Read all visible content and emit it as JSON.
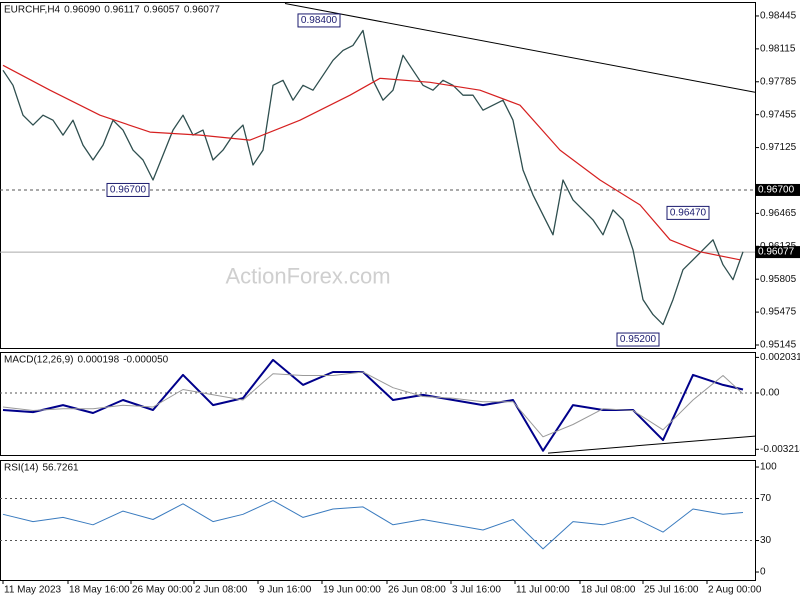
{
  "chart_data": [
    {
      "type": "line",
      "title": "EURCHF,H4",
      "header_values": [
        {
          "value": 0.9609,
          "label": "0.96090"
        },
        {
          "value": 0.96117,
          "label": "0.96117"
        },
        {
          "value": 0.96057,
          "label": "0.96057"
        },
        {
          "value": 0.96077,
          "label": "0.96077"
        }
      ],
      "watermark": "ActionForex.com",
      "xlim": [
        -0.3,
        75.2
      ],
      "ylim": [
        0.95115,
        0.98585
      ],
      "yticks": [
        0.98445,
        0.98115,
        0.97785,
        0.97455,
        0.97125,
        0.96465,
        0.96135,
        0.95805,
        0.95475,
        0.95145
      ],
      "series": [
        {
          "color": "#2f4f4f",
          "width": 1.3,
          "values": [
            0.979,
            0.9775,
            0.9745,
            0.9735,
            0.9745,
            0.974,
            0.9725,
            0.974,
            0.9715,
            0.97,
            0.9715,
            0.974,
            0.973,
            0.971,
            0.97,
            0.968,
            0.9705,
            0.973,
            0.9745,
            0.9725,
            0.973,
            0.97,
            0.971,
            0.9725,
            0.9735,
            0.9695,
            0.971,
            0.9775,
            0.978,
            0.976,
            0.9775,
            0.977,
            0.9785,
            0.98,
            0.981,
            0.9815,
            0.983,
            0.978,
            0.976,
            0.977,
            0.9805,
            0.979,
            0.9775,
            0.977,
            0.978,
            0.9775,
            0.9765,
            0.9765,
            0.975,
            0.9755,
            0.976,
            0.974,
            0.969,
            0.9665,
            0.9645,
            0.9625,
            0.968,
            0.966,
            0.965,
            0.964,
            0.9625,
            0.965,
            0.964,
            0.961,
            0.956,
            0.9545,
            0.9535,
            0.956,
            0.959,
            0.96,
            0.961,
            0.962,
            0.9595,
            0.958,
            0.9608
          ]
        },
        {
          "color": "#d62020",
          "width": 1.2,
          "x": [
            0,
            4.7,
            9.7,
            14.7,
            19.7,
            24.7,
            29.7,
            34.7,
            37.7,
            42.7,
            47.7,
            51.7,
            55.7,
            59.7,
            63.7,
            66.7,
            69.7,
            73.7
          ],
          "values": [
            0.9795,
            0.977,
            0.9745,
            0.9728,
            0.9725,
            0.972,
            0.974,
            0.9765,
            0.9782,
            0.9778,
            0.977,
            0.9755,
            0.971,
            0.968,
            0.9655,
            0.962,
            0.9608,
            0.96
          ]
        }
      ],
      "levels": [
        {
          "value": 0.967,
          "label": "0.96700"
        }
      ],
      "last": {
        "value": 0.96077,
        "label": "0.96077"
      },
      "annotations": [
        {
          "x": 31.6,
          "value": 0.984,
          "label": "0.98400"
        },
        {
          "x": 12.5,
          "value": 0.967,
          "label": "0.96700"
        },
        {
          "x": 68.5,
          "value": 0.9647,
          "label": "0.96470"
        },
        {
          "x": 63.5,
          "value": 0.952,
          "label": "0.95200"
        }
      ],
      "trendlines": [
        {
          "x": [
            28.2,
            75.2
          ],
          "values": [
            0.9857,
            0.9768
          ]
        }
      ]
    },
    {
      "type": "line",
      "title": "MACD(12,26,9)",
      "header_values": [
        {
          "value": 0.000198,
          "label": "0.000198"
        },
        {
          "value": -5e-05,
          "label": "-0.000050"
        }
      ],
      "xlim": [
        -0.3,
        75.2
      ],
      "ylim": [
        -0.00354,
        0.00234
      ],
      "yticks": [
        0.002031,
        {
          "value": 0,
          "label": "0.00"
        },
        -0.003214
      ],
      "levels": [
        0
      ],
      "series": [
        {
          "color": "#00008b",
          "width": 2,
          "x": [
            0,
            3,
            6,
            9,
            12,
            15,
            18,
            21,
            24,
            27,
            30,
            33,
            36,
            39,
            42,
            45,
            48,
            51,
            54,
            57,
            60,
            63,
            66,
            69,
            72,
            74
          ],
          "values": [
            -0.00097,
            -0.00109,
            -0.00069,
            -0.00114,
            -0.0004,
            -0.00097,
            0.00103,
            -0.00069,
            -0.00029,
            0.00189,
            0.00046,
            0.0012,
            0.0012,
            -0.0004,
            -0.00011,
            -0.0004,
            -0.00069,
            -0.0004,
            -0.0033,
            -0.00069,
            -0.00097,
            -0.00097,
            -0.00269,
            0.00103,
            0.00046,
            0.000198
          ]
        },
        {
          "color": "#9a9a9a",
          "width": 1,
          "x": [
            0,
            3,
            6,
            9,
            12,
            15,
            18,
            21,
            24,
            27,
            30,
            33,
            36,
            39,
            42,
            45,
            48,
            51,
            54,
            57,
            60,
            63,
            66,
            69,
            72,
            74
          ],
          "values": [
            -0.0008,
            -0.001,
            -0.0009,
            -0.0009,
            -0.0007,
            -0.0008,
            0.0002,
            -0.0001,
            -0.0004,
            0.0011,
            0.001,
            0.001,
            0.0012,
            0.0003,
            -0.0002,
            -0.0003,
            -0.0005,
            -0.0005,
            -0.0025,
            -0.0018,
            -0.0009,
            -0.001,
            -0.0021,
            -0.0004,
            0.001,
            -5e-05
          ]
        }
      ],
      "trendlines": [
        {
          "x": [
            54.5,
            75.2
          ],
          "values": [
            -0.00343,
            -0.00246
          ]
        }
      ]
    },
    {
      "type": "line",
      "title": "RSI(14)",
      "header_values": [
        {
          "value": 56.7261,
          "label": "56.7261"
        }
      ],
      "xlim": [
        -0.3,
        75.2
      ],
      "ylim": [
        -7.6,
        106.7
      ],
      "yticks": [
        100,
        70,
        30,
        0
      ],
      "levels": [
        70,
        30
      ],
      "series": [
        {
          "color": "#3a7bbf",
          "width": 1,
          "x": [
            0,
            3,
            6,
            9,
            12,
            15,
            18,
            21,
            24,
            27,
            30,
            33,
            36,
            39,
            42,
            45,
            48,
            51,
            54,
            57,
            60,
            63,
            66,
            69,
            72,
            74
          ],
          "values": [
            55,
            48,
            52,
            45,
            58,
            50,
            65,
            48,
            55,
            68,
            52,
            60,
            62,
            45,
            50,
            45,
            40,
            50,
            22,
            48,
            45,
            52,
            38,
            60,
            55,
            56.7261
          ]
        }
      ],
      "xticks": [
        {
          "value": 0,
          "label": "11 May 2023"
        },
        {
          "value": 6.5,
          "label": "18 May 16:00"
        },
        {
          "value": 12.8,
          "label": "26 May 00:00"
        },
        {
          "value": 19.1,
          "label": "2 Jun 08:00"
        },
        {
          "value": 25.5,
          "label": "9 Jun 16:00"
        },
        {
          "value": 31.9,
          "label": "19 Jun 00:00"
        },
        {
          "value": 38.4,
          "label": "26 Jun 08:00"
        },
        {
          "value": 44.8,
          "label": "3 Jul 16:00"
        },
        {
          "value": 51.2,
          "label": "11 Jul 00:00"
        },
        {
          "value": 57.7,
          "label": "18 Jul 08:00"
        },
        {
          "value": 64,
          "label": "25 Jul 16:00"
        },
        {
          "value": 70.4,
          "label": "2 Aug 00:00"
        }
      ]
    }
  ]
}
